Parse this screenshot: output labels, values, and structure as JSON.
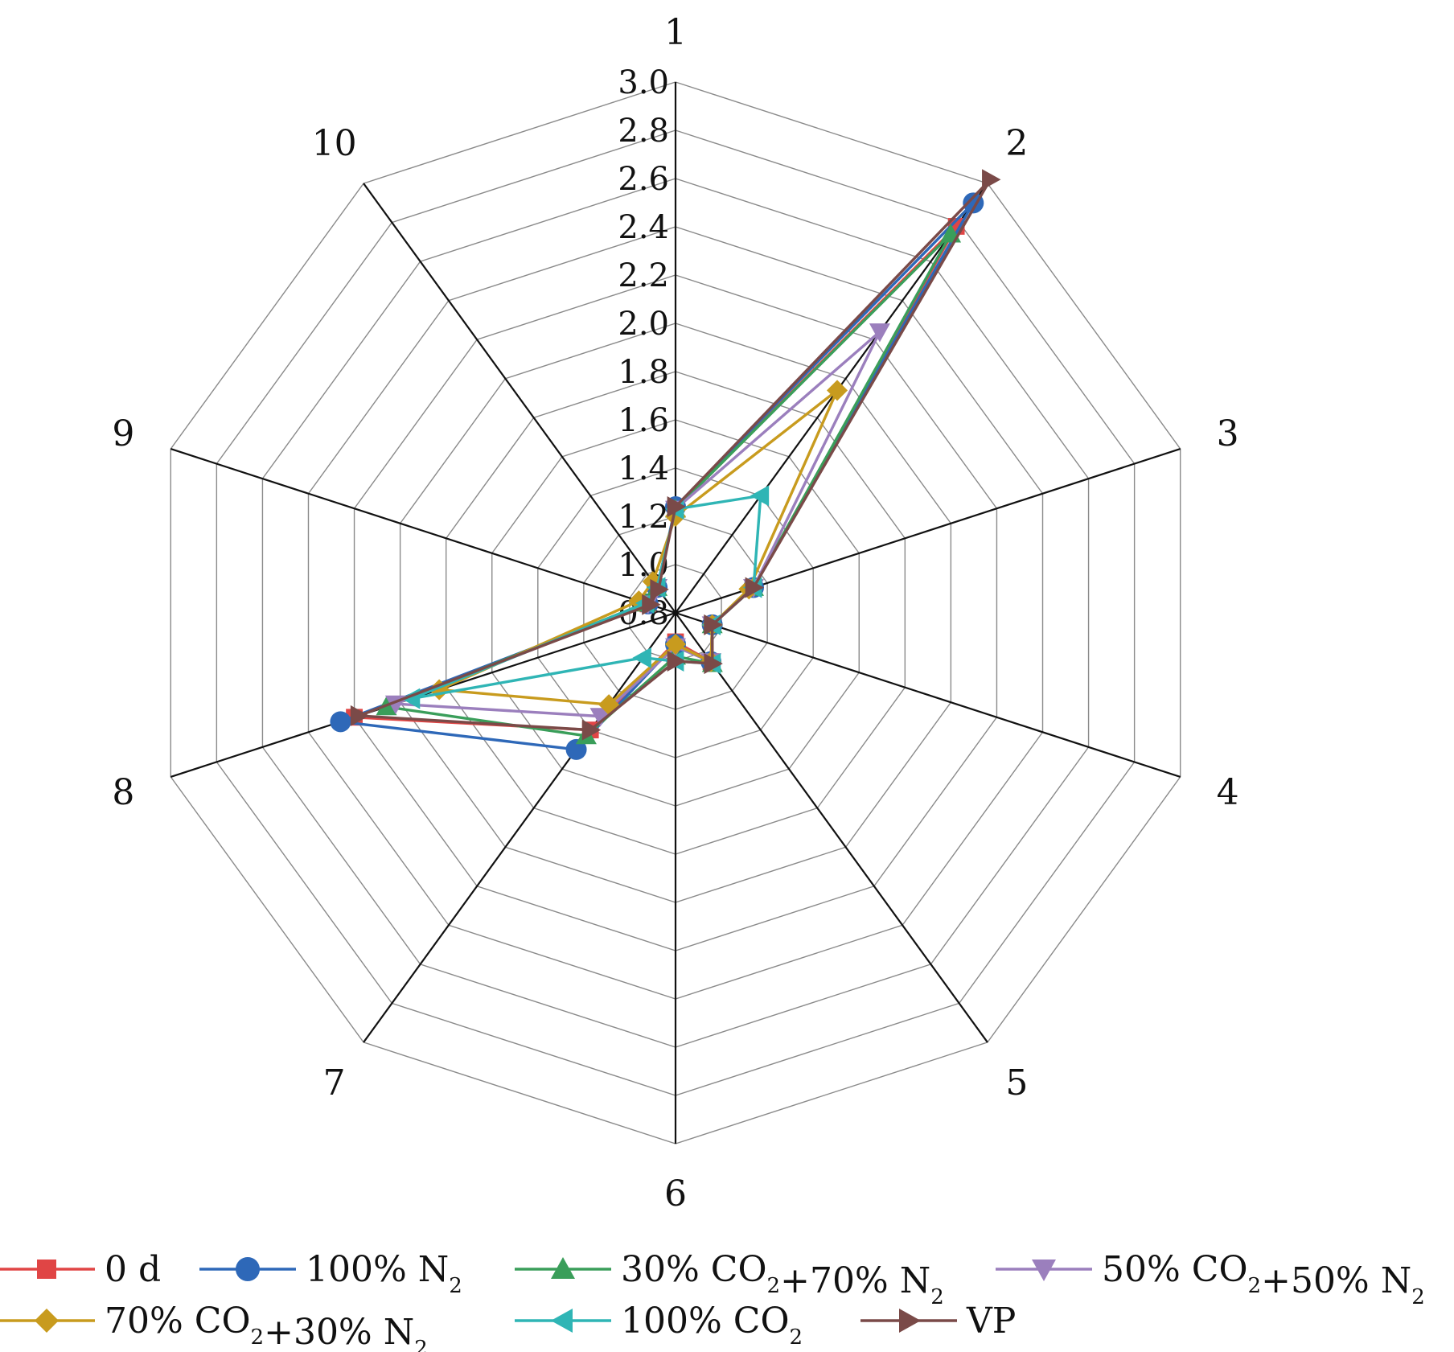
{
  "chart_data": {
    "type": "radar",
    "categories": [
      "1",
      "2",
      "3",
      "4",
      "5",
      "6",
      "7",
      "8",
      "9",
      "10"
    ],
    "rlim": [
      0.8,
      3.0
    ],
    "ticks": [
      "0.8",
      "1.0",
      "1.2",
      "1.4",
      "1.6",
      "1.8",
      "2.0",
      "2.2",
      "2.4",
      "2.6",
      "2.8",
      "3.0"
    ],
    "grid": true,
    "legend_position": "bottom",
    "series": [
      {
        "name": "0 d",
        "name_parts": [
          {
            "t": "0 d"
          }
        ],
        "color": "#e04545",
        "marker": "square",
        "values": [
          1.23,
          2.78,
          1.14,
          0.96,
          1.05,
          0.92,
          1.4,
          2.2,
          0.92,
          0.93
        ]
      },
      {
        "name": "100% N2",
        "name_parts": [
          {
            "t": "100% N"
          },
          {
            "t": "2",
            "sub": true
          }
        ],
        "color": "#2e68b8",
        "marker": "circle",
        "values": [
          1.24,
          2.9,
          1.14,
          0.96,
          1.05,
          0.93,
          1.5,
          2.26,
          0.92,
          0.93
        ]
      },
      {
        "name": "30% CO2+70% N2",
        "name_parts": [
          {
            "t": "30% CO"
          },
          {
            "t": "2",
            "sub": true
          },
          {
            "t": "+70% N"
          },
          {
            "t": "2",
            "sub": true
          }
        ],
        "color": "#3a9e5a",
        "marker": "triangle-up",
        "values": [
          1.23,
          2.74,
          1.14,
          0.96,
          1.06,
          0.98,
          1.43,
          2.06,
          0.93,
          0.93
        ]
      },
      {
        "name": "50% CO2+50% N2",
        "name_parts": [
          {
            "t": "50% CO"
          },
          {
            "t": "2",
            "sub": true
          },
          {
            "t": "+50% N"
          },
          {
            "t": "2",
            "sub": true
          }
        ],
        "color": "#9b7fbd",
        "marker": "triangle-down",
        "values": [
          1.23,
          2.24,
          1.14,
          0.96,
          1.05,
          0.94,
          1.33,
          2.02,
          0.92,
          0.93
        ]
      },
      {
        "name": "70% CO2+30% N2",
        "name_parts": [
          {
            "t": "70% CO"
          },
          {
            "t": "2",
            "sub": true
          },
          {
            "t": "+30% N"
          },
          {
            "t": "2",
            "sub": true
          }
        ],
        "color": "#c89b1e",
        "marker": "diamond",
        "values": [
          1.2,
          1.94,
          1.12,
          0.96,
          1.05,
          0.93,
          1.27,
          1.83,
          0.96,
          0.96
        ]
      },
      {
        "name": "100% CO2",
        "name_parts": [
          {
            "t": "100% CO"
          },
          {
            "t": "2",
            "sub": true
          }
        ],
        "color": "#2fb5b5",
        "marker": "triangle-left",
        "values": [
          1.23,
          1.4,
          1.14,
          0.96,
          1.06,
          1.0,
          1.03,
          1.95,
          0.93,
          0.93
        ]
      },
      {
        "name": "VP",
        "name_parts": [
          {
            "t": "VP"
          }
        ],
        "color": "#7a4a48",
        "marker": "triangle-right",
        "values": [
          1.24,
          3.02,
          1.14,
          0.96,
          1.06,
          1.0,
          1.4,
          2.18,
          0.91,
          0.92
        ]
      }
    ]
  }
}
